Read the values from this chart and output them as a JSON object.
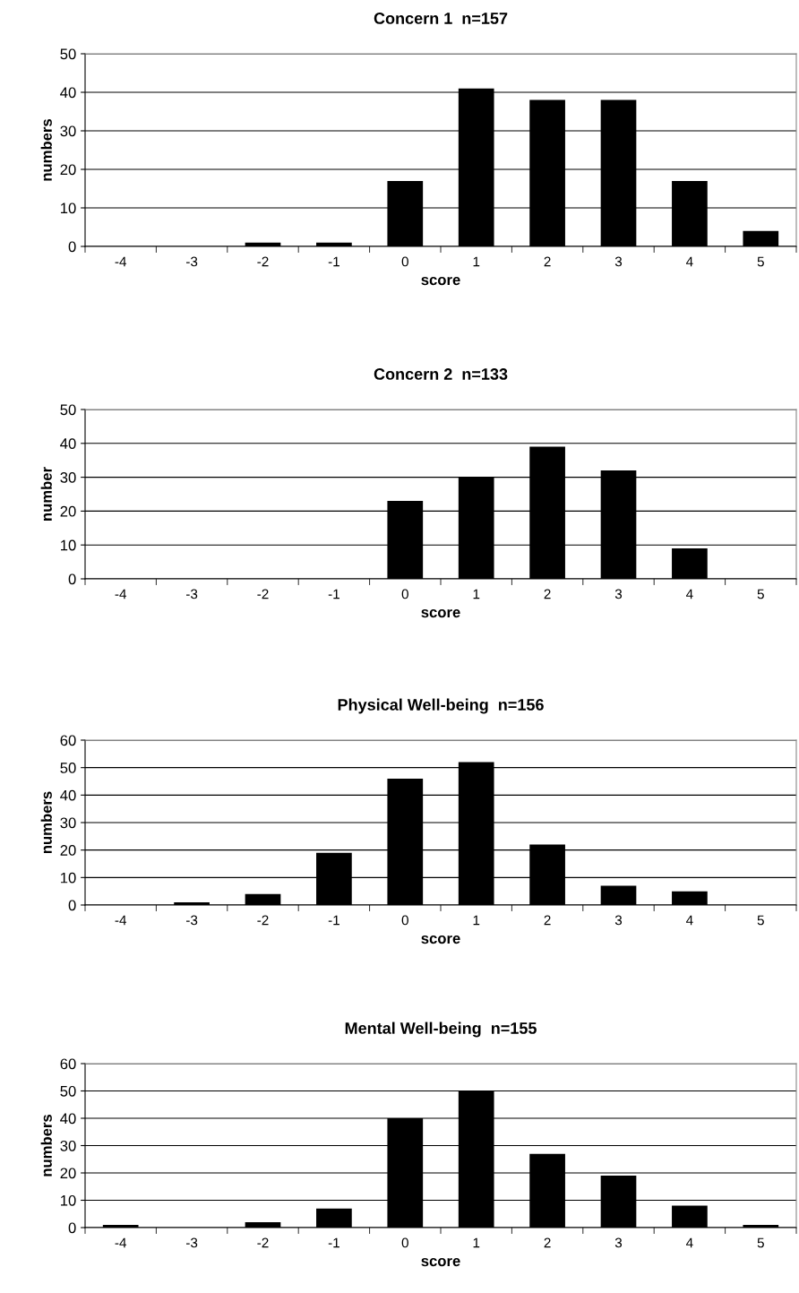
{
  "chart_data": [
    {
      "type": "bar",
      "title": "Concern 1  n=157",
      "xlabel": "score",
      "ylabel": "numbers",
      "categories": [
        "-4",
        "-3",
        "-2",
        "-1",
        "0",
        "1",
        "2",
        "3",
        "4",
        "5"
      ],
      "values": [
        0,
        0,
        1,
        1,
        17,
        41,
        38,
        38,
        17,
        4
      ],
      "color": "#000000",
      "ylim": [
        0,
        50
      ],
      "yticks": [
        0,
        10,
        20,
        30,
        40,
        50
      ],
      "grid": "y"
    },
    {
      "type": "bar",
      "title": "Concern 2  n=133",
      "xlabel": "score",
      "ylabel": "number",
      "categories": [
        "-4",
        "-3",
        "-2",
        "-1",
        "0",
        "1",
        "2",
        "3",
        "4",
        "5"
      ],
      "values": [
        0,
        0,
        0,
        0,
        23,
        30,
        39,
        32,
        9,
        0
      ],
      "color": "#000000",
      "ylim": [
        0,
        50
      ],
      "yticks": [
        0,
        10,
        20,
        30,
        40,
        50
      ],
      "grid": "y"
    },
    {
      "type": "bar",
      "title": "Physical Well-being  n=156",
      "xlabel": "score",
      "ylabel": "numbers",
      "categories": [
        "-4",
        "-3",
        "-2",
        "-1",
        "0",
        "1",
        "2",
        "3",
        "4",
        "5"
      ],
      "values": [
        0,
        1,
        4,
        19,
        46,
        52,
        22,
        7,
        5,
        0
      ],
      "color": "#000000",
      "ylim": [
        0,
        60
      ],
      "yticks": [
        0,
        10,
        20,
        30,
        40,
        50,
        60
      ],
      "grid": "y"
    },
    {
      "type": "bar",
      "title": "Mental Well-being  n=155",
      "xlabel": "score",
      "ylabel": "numbers",
      "categories": [
        "-4",
        "-3",
        "-2",
        "-1",
        "0",
        "1",
        "2",
        "3",
        "4",
        "5"
      ],
      "values": [
        1,
        0,
        2,
        7,
        40,
        50,
        27,
        19,
        8,
        1
      ],
      "color": "#000000",
      "ylim": [
        0,
        60
      ],
      "yticks": [
        0,
        10,
        20,
        30,
        40,
        50,
        60
      ],
      "grid": "y"
    }
  ]
}
